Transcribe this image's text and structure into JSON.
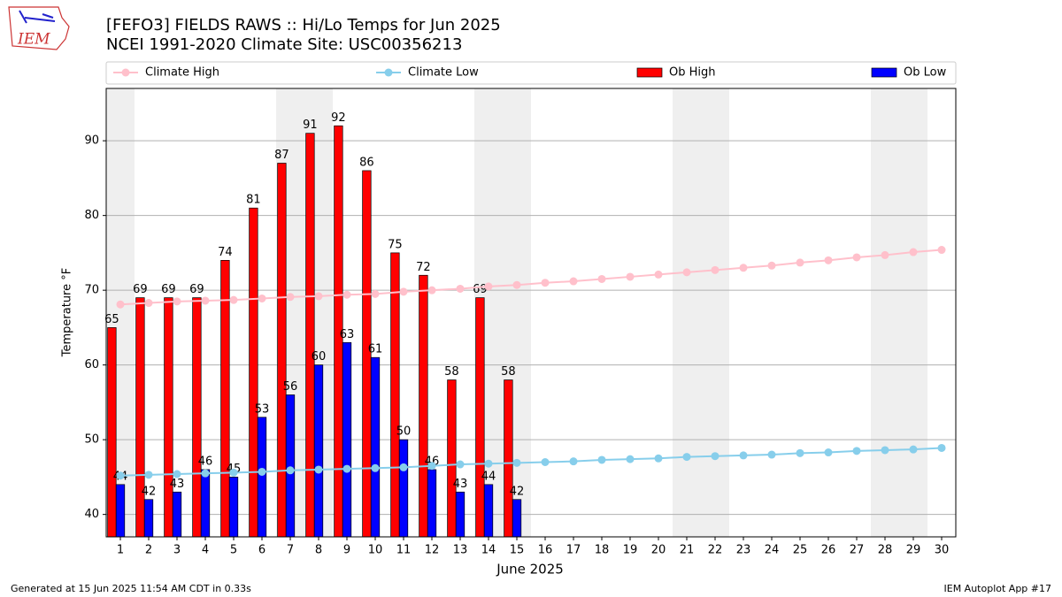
{
  "chart_data": {
    "type": "bar_line",
    "title": "[FEFO3] FIELDS RAWS :: Hi/Lo Temps for Jun 2025",
    "subtitle": "NCEI 1991-2020 Climate Site: USC00356213",
    "xlabel": "June 2025",
    "ylabel": "Temperature °F",
    "footer_left": "Generated at 15 Jun 2025 11:54 AM CDT in 0.33s",
    "footer_right": "IEM Autoplot App #17",
    "logo_text": "IEM",
    "x": [
      1,
      2,
      3,
      4,
      5,
      6,
      7,
      8,
      9,
      10,
      11,
      12,
      13,
      14,
      15,
      16,
      17,
      18,
      19,
      20,
      21,
      22,
      23,
      24,
      25,
      26,
      27,
      28,
      29,
      30
    ],
    "xlim": [
      0.5,
      30.5
    ],
    "xticks": [
      1,
      2,
      3,
      4,
      5,
      6,
      7,
      8,
      9,
      10,
      11,
      12,
      13,
      14,
      15,
      16,
      17,
      18,
      19,
      20,
      21,
      22,
      23,
      24,
      25,
      26,
      27,
      28,
      29,
      30
    ],
    "ylim": [
      37,
      97
    ],
    "yticks": [
      40,
      50,
      60,
      70,
      80,
      90
    ],
    "grid": true,
    "weekend_days": [
      1,
      7,
      8,
      14,
      15,
      21,
      22,
      28,
      29
    ],
    "series": [
      {
        "name": "Climate High",
        "kind": "line",
        "color": "#ffc0cb",
        "values": [
          68.1,
          68.3,
          68.5,
          68.6,
          68.7,
          68.9,
          69.1,
          69.2,
          69.4,
          69.5,
          69.8,
          70.0,
          70.2,
          70.5,
          70.7,
          71.0,
          71.2,
          71.5,
          71.8,
          72.1,
          72.4,
          72.7,
          73.0,
          73.3,
          73.7,
          74.0,
          74.4,
          74.7,
          75.1,
          75.4
        ]
      },
      {
        "name": "Climate Low",
        "kind": "line",
        "color": "#87ceeb",
        "values": [
          45.2,
          45.3,
          45.4,
          45.5,
          45.6,
          45.7,
          45.9,
          46.0,
          46.1,
          46.2,
          46.3,
          46.5,
          46.7,
          46.8,
          46.9,
          47.0,
          47.1,
          47.3,
          47.4,
          47.5,
          47.7,
          47.8,
          47.9,
          48.0,
          48.2,
          48.3,
          48.5,
          48.6,
          48.7,
          48.9
        ]
      },
      {
        "name": "Ob High",
        "kind": "bar",
        "color": "#ff0000",
        "values": [
          65,
          69,
          69,
          69,
          74,
          81,
          87,
          91,
          92,
          86,
          75,
          72,
          58,
          69,
          58,
          null,
          null,
          null,
          null,
          null,
          null,
          null,
          null,
          null,
          null,
          null,
          null,
          null,
          null,
          null
        ]
      },
      {
        "name": "Ob Low",
        "kind": "bar",
        "color": "#0000ff",
        "values": [
          44,
          42,
          43,
          46,
          45,
          53,
          56,
          60,
          63,
          61,
          50,
          46,
          43,
          44,
          42,
          null,
          null,
          null,
          null,
          null,
          null,
          null,
          null,
          null,
          null,
          null,
          null,
          null,
          null,
          null
        ]
      }
    ]
  }
}
